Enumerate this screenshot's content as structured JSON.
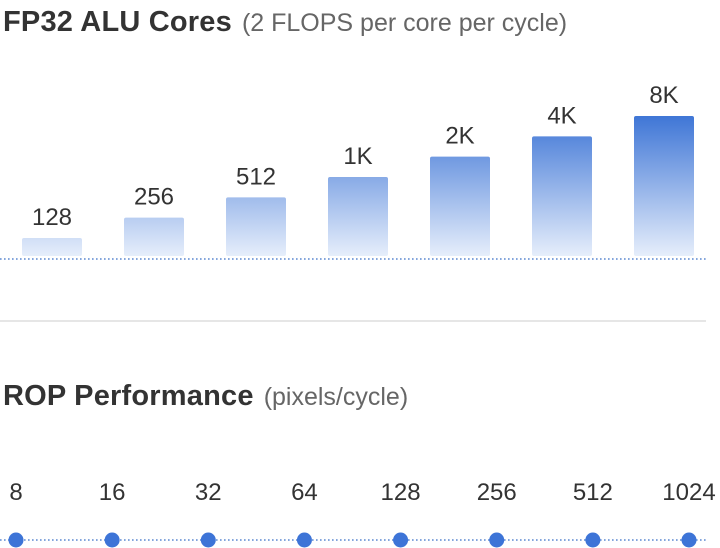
{
  "alu_section": {
    "title": "FP32 ALU Cores",
    "subtitle": "(2 FLOPS per core per cycle)"
  },
  "rop_section": {
    "title": "ROP Performance",
    "subtitle": "(pixels/cycle)"
  },
  "colors": {
    "bar_light": "#dde7f8",
    "bar_dark": "#3f76d6",
    "bar_bottom": "#e6eefb",
    "baseline": "#5b88d0",
    "dot": "#3d74d7",
    "divider": "#e6e6e6"
  },
  "chart_data": [
    {
      "type": "bar",
      "title": "FP32 ALU Cores",
      "subtitle": "(2 FLOPS per core per cycle)",
      "scale": "log2",
      "categories": [
        "128",
        "256",
        "512",
        "1K",
        "2K",
        "4K",
        "8K"
      ],
      "values": [
        128,
        256,
        512,
        1024,
        2048,
        4096,
        8192
      ],
      "data_labels": [
        "128",
        "256",
        "512",
        "1K",
        "2K",
        "4K",
        "8K"
      ],
      "grid": false,
      "axis": "dotted baseline only"
    },
    {
      "type": "scatter",
      "title": "ROP Performance",
      "subtitle": "(pixels/cycle)",
      "categories": [
        "8",
        "16",
        "32",
        "64",
        "128",
        "256",
        "512",
        "1024"
      ],
      "values": [
        8,
        16,
        32,
        64,
        128,
        256,
        512,
        1024
      ],
      "grid": false,
      "axis": "dotted line connecting points"
    }
  ]
}
